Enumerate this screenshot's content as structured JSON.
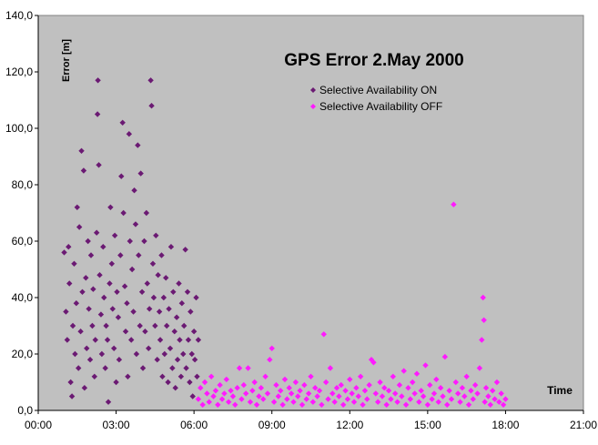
{
  "chart_data": {
    "type": "scatter",
    "title": "GPS Error 2.May 2000",
    "ylabel": "Error [m]",
    "xlabel": "Time",
    "xlim": [
      "00:00",
      "21:00"
    ],
    "ylim": [
      0,
      140
    ],
    "x_ticks": [
      "00:00",
      "03:00",
      "06:00",
      "09:00",
      "12:00",
      "15:00",
      "18:00",
      "21:00"
    ],
    "y_ticks": [
      "0,0",
      "20,0",
      "40,0",
      "60,0",
      "80,0",
      "100,0",
      "120,0",
      "140,0"
    ],
    "grid": false,
    "legend_position": "top-center",
    "plot_background": "#c0c0c0",
    "series": [
      {
        "name": "Selective Availability ON",
        "color": "#6b1a73",
        "marker": "diamond",
        "points": [
          [
            "01:00",
            56
          ],
          [
            "01:04",
            35
          ],
          [
            "01:07",
            25
          ],
          [
            "01:10",
            58
          ],
          [
            "01:12",
            45
          ],
          [
            "01:15",
            10
          ],
          [
            "01:18",
            5
          ],
          [
            "01:20",
            30
          ],
          [
            "01:23",
            52
          ],
          [
            "01:25",
            20
          ],
          [
            "01:28",
            38
          ],
          [
            "01:30",
            72
          ],
          [
            "01:33",
            15
          ],
          [
            "01:35",
            65
          ],
          [
            "01:38",
            28
          ],
          [
            "01:40",
            92
          ],
          [
            "01:42",
            42
          ],
          [
            "01:45",
            85
          ],
          [
            "01:47",
            8
          ],
          [
            "01:50",
            47
          ],
          [
            "01:52",
            22
          ],
          [
            "01:55",
            60
          ],
          [
            "01:57",
            36
          ],
          [
            "02:00",
            18
          ],
          [
            "02:02",
            55
          ],
          [
            "02:05",
            30
          ],
          [
            "02:07",
            43
          ],
          [
            "02:10",
            12
          ],
          [
            "02:12",
            25
          ],
          [
            "02:15",
            63
          ],
          [
            "02:17",
            105
          ],
          [
            "02:18",
            117
          ],
          [
            "02:20",
            87
          ],
          [
            "02:22",
            48
          ],
          [
            "02:25",
            34
          ],
          [
            "02:27",
            20
          ],
          [
            "02:30",
            58
          ],
          [
            "02:32",
            40
          ],
          [
            "02:35",
            15
          ],
          [
            "02:37",
            30
          ],
          [
            "02:40",
            25
          ],
          [
            "02:42",
            3
          ],
          [
            "02:45",
            45
          ],
          [
            "02:47",
            72
          ],
          [
            "02:50",
            52
          ],
          [
            "02:52",
            36
          ],
          [
            "02:55",
            22
          ],
          [
            "02:57",
            62
          ],
          [
            "03:00",
            10
          ],
          [
            "03:02",
            42
          ],
          [
            "03:05",
            33
          ],
          [
            "03:07",
            18
          ],
          [
            "03:10",
            55
          ],
          [
            "03:12",
            83
          ],
          [
            "03:15",
            102
          ],
          [
            "03:17",
            70
          ],
          [
            "03:20",
            44
          ],
          [
            "03:22",
            28
          ],
          [
            "03:25",
            38
          ],
          [
            "03:27",
            12
          ],
          [
            "03:30",
            98
          ],
          [
            "03:32",
            60
          ],
          [
            "03:35",
            25
          ],
          [
            "03:37",
            50
          ],
          [
            "03:40",
            35
          ],
          [
            "03:42",
            78
          ],
          [
            "03:45",
            66
          ],
          [
            "03:47",
            20
          ],
          [
            "03:50",
            94
          ],
          [
            "03:52",
            55
          ],
          [
            "03:55",
            30
          ],
          [
            "03:57",
            84
          ],
          [
            "04:00",
            42
          ],
          [
            "04:02",
            15
          ],
          [
            "04:05",
            60
          ],
          [
            "04:07",
            28
          ],
          [
            "04:10",
            70
          ],
          [
            "04:12",
            45
          ],
          [
            "04:15",
            22
          ],
          [
            "04:17",
            36
          ],
          [
            "04:20",
            117
          ],
          [
            "04:22",
            108
          ],
          [
            "04:25",
            52
          ],
          [
            "04:27",
            40
          ],
          [
            "04:30",
            30
          ],
          [
            "04:32",
            62
          ],
          [
            "04:35",
            18
          ],
          [
            "04:37",
            48
          ],
          [
            "04:40",
            35
          ],
          [
            "04:42",
            25
          ],
          [
            "04:45",
            55
          ],
          [
            "04:47",
            12
          ],
          [
            "04:50",
            40
          ],
          [
            "04:52",
            20
          ],
          [
            "04:55",
            47
          ],
          [
            "04:57",
            30
          ],
          [
            "05:00",
            10
          ],
          [
            "05:02",
            36
          ],
          [
            "05:05",
            22
          ],
          [
            "05:07",
            58
          ],
          [
            "05:10",
            15
          ],
          [
            "05:12",
            42
          ],
          [
            "05:15",
            28
          ],
          [
            "05:17",
            8
          ],
          [
            "05:20",
            33
          ],
          [
            "05:22",
            18
          ],
          [
            "05:25",
            45
          ],
          [
            "05:27",
            25
          ],
          [
            "05:30",
            12
          ],
          [
            "05:32",
            38
          ],
          [
            "05:35",
            20
          ],
          [
            "05:37",
            30
          ],
          [
            "05:40",
            57
          ],
          [
            "05:42",
            15
          ],
          [
            "05:45",
            42
          ],
          [
            "05:47",
            25
          ],
          [
            "05:50",
            10
          ],
          [
            "05:52",
            35
          ],
          [
            "05:55",
            20
          ],
          [
            "05:57",
            5
          ],
          [
            "06:00",
            28
          ],
          [
            "06:02",
            18
          ],
          [
            "06:05",
            40
          ],
          [
            "06:07",
            12
          ],
          [
            "06:10",
            25
          ]
        ]
      },
      {
        "name": "Selective Availability OFF",
        "color": "#ff1aff",
        "marker": "diamond",
        "points": [
          [
            "06:10",
            4
          ],
          [
            "06:15",
            8
          ],
          [
            "06:20",
            2
          ],
          [
            "06:25",
            10
          ],
          [
            "06:30",
            6
          ],
          [
            "06:35",
            3
          ],
          [
            "06:40",
            12
          ],
          [
            "06:45",
            5
          ],
          [
            "06:50",
            7
          ],
          [
            "06:55",
            2
          ],
          [
            "07:00",
            9
          ],
          [
            "07:05",
            4
          ],
          [
            "07:10",
            6
          ],
          [
            "07:15",
            11
          ],
          [
            "07:20",
            3
          ],
          [
            "07:25",
            7
          ],
          [
            "07:30",
            5
          ],
          [
            "07:35",
            2
          ],
          [
            "07:40",
            8
          ],
          [
            "07:45",
            15
          ],
          [
            "07:50",
            4
          ],
          [
            "07:55",
            9
          ],
          [
            "08:00",
            6
          ],
          [
            "08:05",
            15
          ],
          [
            "08:10",
            3
          ],
          [
            "08:15",
            7
          ],
          [
            "08:20",
            10
          ],
          [
            "08:25",
            2
          ],
          [
            "08:30",
            5
          ],
          [
            "08:35",
            8
          ],
          [
            "08:40",
            4
          ],
          [
            "08:45",
            12
          ],
          [
            "08:50",
            6
          ],
          [
            "08:55",
            18
          ],
          [
            "09:00",
            22
          ],
          [
            "09:05",
            3
          ],
          [
            "09:10",
            9
          ],
          [
            "09:15",
            5
          ],
          [
            "09:20",
            7
          ],
          [
            "09:25",
            2
          ],
          [
            "09:30",
            11
          ],
          [
            "09:35",
            4
          ],
          [
            "09:40",
            8
          ],
          [
            "09:45",
            6
          ],
          [
            "09:50",
            3
          ],
          [
            "09:55",
            10
          ],
          [
            "10:00",
            5
          ],
          [
            "10:05",
            7
          ],
          [
            "10:10",
            2
          ],
          [
            "10:15",
            9
          ],
          [
            "10:20",
            4
          ],
          [
            "10:25",
            6
          ],
          [
            "10:30",
            12
          ],
          [
            "10:35",
            3
          ],
          [
            "10:40",
            8
          ],
          [
            "10:45",
            5
          ],
          [
            "10:50",
            7
          ],
          [
            "10:55",
            2
          ],
          [
            "11:00",
            27
          ],
          [
            "11:05",
            10
          ],
          [
            "11:10",
            4
          ],
          [
            "11:15",
            15
          ],
          [
            "11:20",
            6
          ],
          [
            "11:25",
            3
          ],
          [
            "11:30",
            8
          ],
          [
            "11:35",
            5
          ],
          [
            "11:40",
            9
          ],
          [
            "11:45",
            2
          ],
          [
            "11:50",
            7
          ],
          [
            "11:55",
            4
          ],
          [
            "12:00",
            11
          ],
          [
            "12:05",
            6
          ],
          [
            "12:10",
            3
          ],
          [
            "12:15",
            8
          ],
          [
            "12:20",
            5
          ],
          [
            "12:25",
            12
          ],
          [
            "12:30",
            2
          ],
          [
            "12:35",
            7
          ],
          [
            "12:40",
            4
          ],
          [
            "12:45",
            9
          ],
          [
            "12:50",
            18
          ],
          [
            "12:55",
            17
          ],
          [
            "13:00",
            6
          ],
          [
            "13:05",
            3
          ],
          [
            "13:10",
            10
          ],
          [
            "13:15",
            5
          ],
          [
            "13:20",
            8
          ],
          [
            "13:25",
            2
          ],
          [
            "13:30",
            7
          ],
          [
            "13:35",
            4
          ],
          [
            "13:40",
            12
          ],
          [
            "13:45",
            6
          ],
          [
            "13:50",
            3
          ],
          [
            "13:55",
            9
          ],
          [
            "14:00",
            5
          ],
          [
            "14:05",
            14
          ],
          [
            "14:10",
            2
          ],
          [
            "14:15",
            8
          ],
          [
            "14:20",
            4
          ],
          [
            "14:25",
            10
          ],
          [
            "14:30",
            6
          ],
          [
            "14:35",
            13
          ],
          [
            "14:40",
            3
          ],
          [
            "14:45",
            7
          ],
          [
            "14:50",
            5
          ],
          [
            "14:55",
            16
          ],
          [
            "15:00",
            2
          ],
          [
            "15:05",
            9
          ],
          [
            "15:10",
            4
          ],
          [
            "15:15",
            6
          ],
          [
            "15:20",
            11
          ],
          [
            "15:25",
            3
          ],
          [
            "15:30",
            8
          ],
          [
            "15:35",
            5
          ],
          [
            "15:40",
            19
          ],
          [
            "15:45",
            2
          ],
          [
            "15:50",
            7
          ],
          [
            "15:55",
            4
          ],
          [
            "16:00",
            73
          ],
          [
            "16:05",
            10
          ],
          [
            "16:10",
            6
          ],
          [
            "16:15",
            3
          ],
          [
            "16:20",
            8
          ],
          [
            "16:25",
            5
          ],
          [
            "16:30",
            12
          ],
          [
            "16:35",
            2
          ],
          [
            "16:40",
            7
          ],
          [
            "16:45",
            4
          ],
          [
            "16:50",
            9
          ],
          [
            "16:55",
            6
          ],
          [
            "17:00",
            15
          ],
          [
            "17:05",
            25
          ],
          [
            "17:08",
            40
          ],
          [
            "17:10",
            32
          ],
          [
            "17:12",
            3
          ],
          [
            "17:15",
            8
          ],
          [
            "17:20",
            5
          ],
          [
            "17:25",
            2
          ],
          [
            "17:30",
            7
          ],
          [
            "17:35",
            4
          ],
          [
            "17:40",
            10
          ],
          [
            "17:45",
            3
          ],
          [
            "17:50",
            6
          ],
          [
            "17:55",
            2
          ],
          [
            "18:00",
            4
          ]
        ]
      }
    ]
  }
}
